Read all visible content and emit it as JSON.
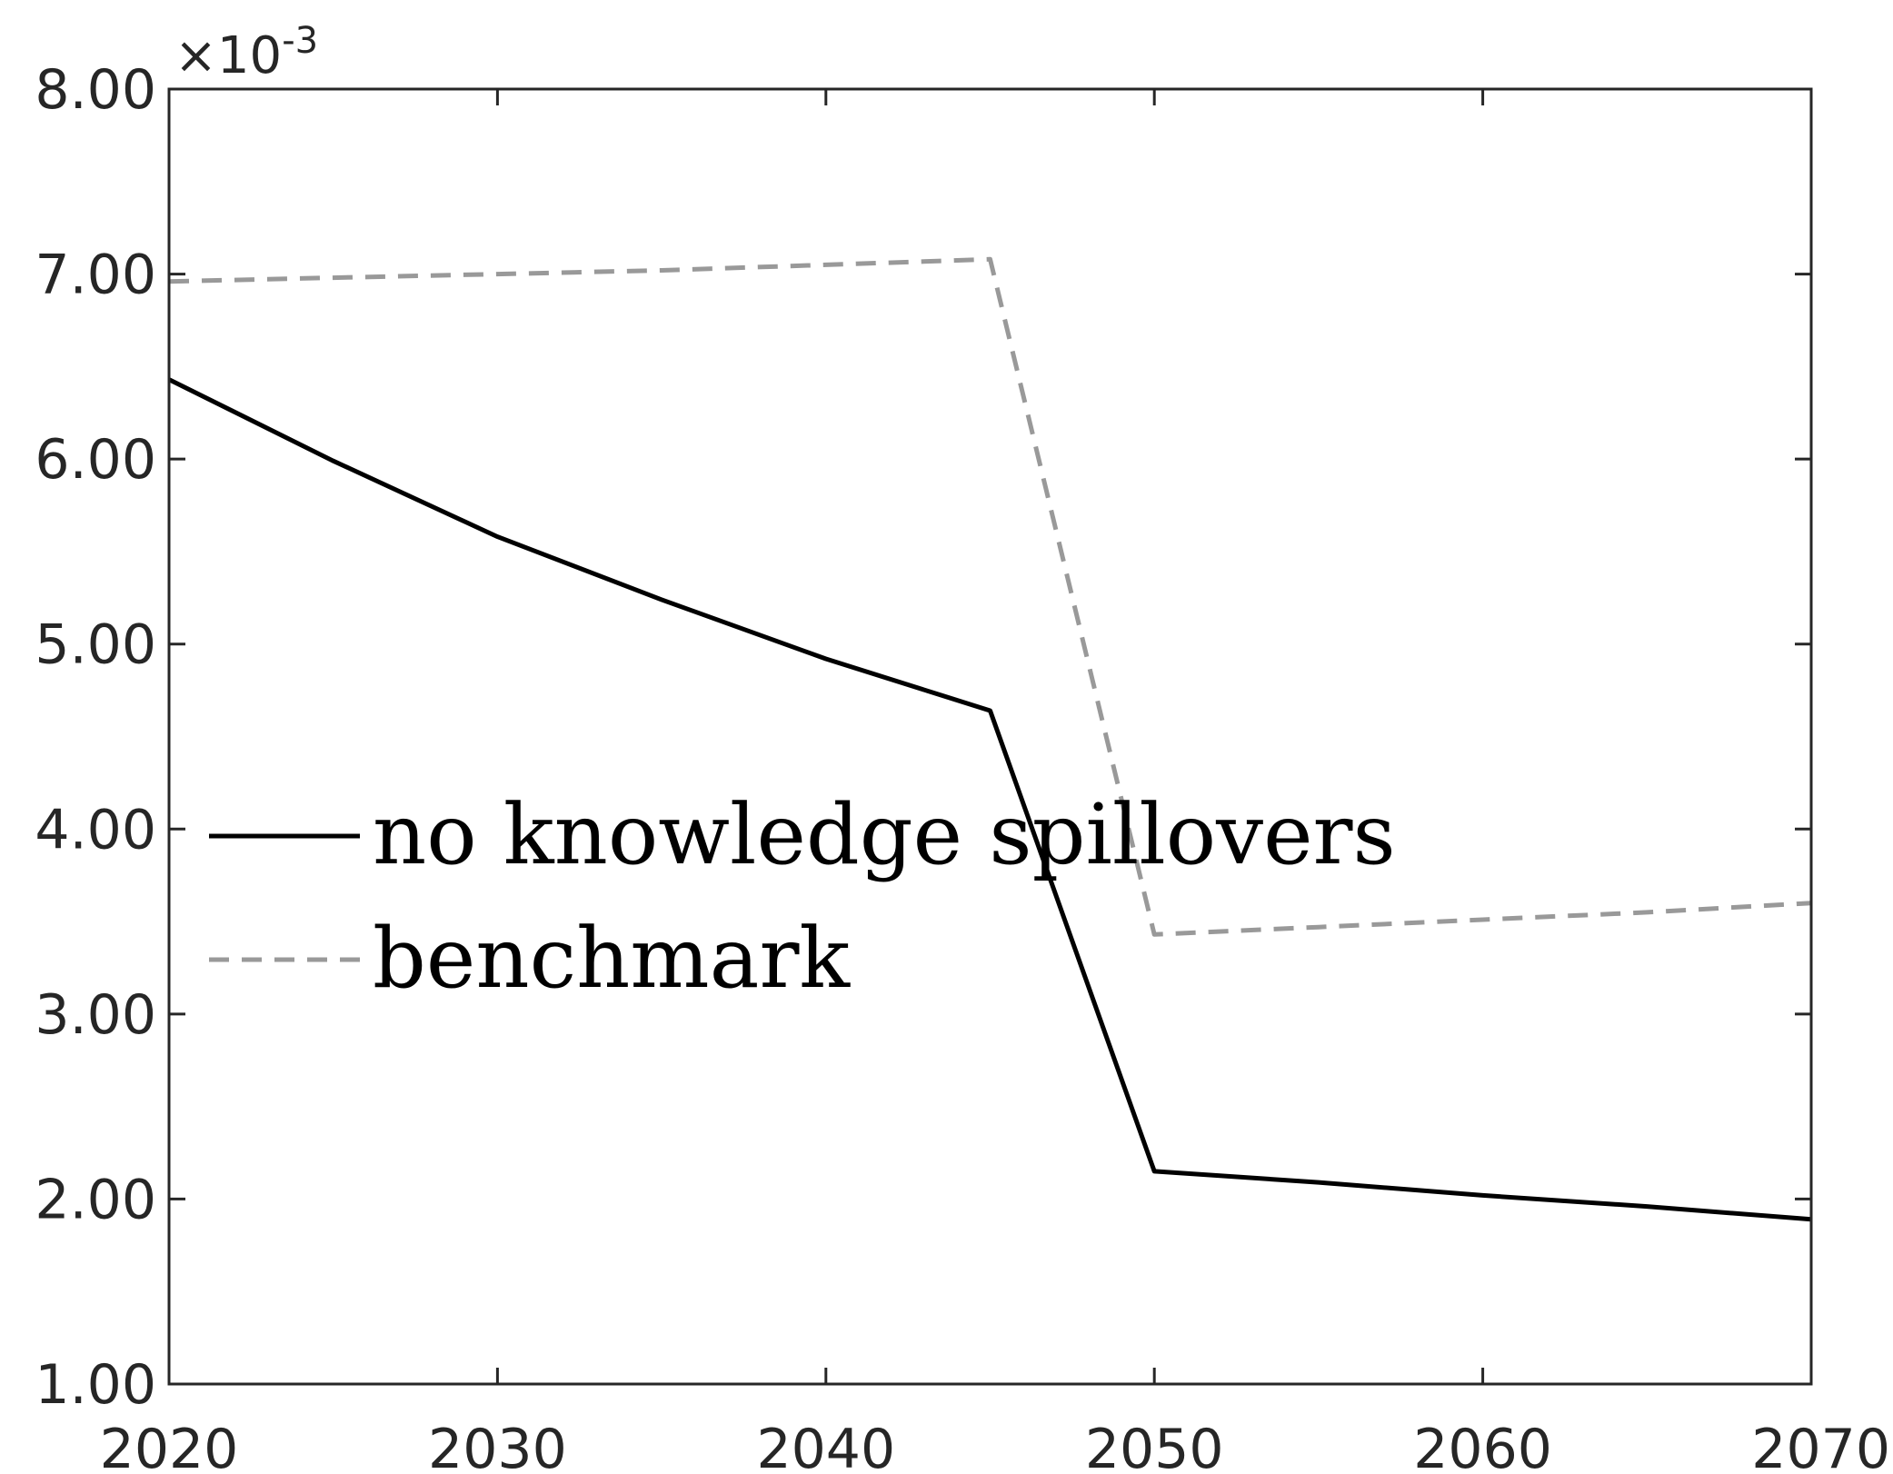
{
  "chart_data": {
    "type": "line",
    "title": "",
    "xlabel": "",
    "ylabel": "",
    "x": [
      2020,
      2025,
      2030,
      2035,
      2040,
      2045,
      2050,
      2055,
      2060,
      2065,
      2070
    ],
    "xlim": [
      2020,
      2070
    ],
    "ylim": [
      1.0,
      8.0
    ],
    "y_exponent_label": "×10",
    "y_exponent_power": "-3",
    "xticks": [
      2020,
      2030,
      2040,
      2050,
      2060,
      2070
    ],
    "xtick_labels": [
      "2020",
      "2030",
      "2040",
      "2050",
      "2060",
      "2070"
    ],
    "yticks": [
      1,
      2,
      3,
      4,
      5,
      6,
      7,
      8
    ],
    "ytick_labels": [
      "1.00",
      "2.00",
      "3.00",
      "4.00",
      "5.00",
      "6.00",
      "7.00",
      "8.00"
    ],
    "grid": false,
    "legend_position": "center-left",
    "series": [
      {
        "name": "no knowledge spillovers",
        "style": "solid",
        "color": "#000000",
        "values": [
          6.43,
          5.99,
          5.58,
          5.24,
          4.92,
          4.64,
          2.15,
          2.09,
          2.02,
          1.96,
          1.89
        ]
      },
      {
        "name": "benchmark",
        "style": "dashed",
        "color": "#999999",
        "values": [
          6.96,
          6.98,
          7.0,
          7.02,
          7.05,
          7.08,
          3.43,
          3.47,
          3.51,
          3.55,
          3.6
        ]
      }
    ]
  }
}
